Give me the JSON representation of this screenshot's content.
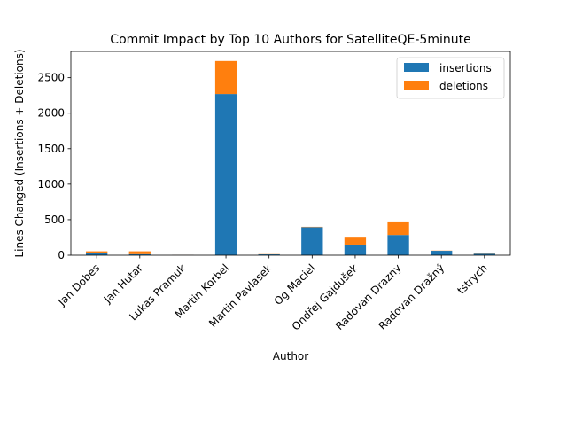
{
  "chart_data": {
    "type": "bar",
    "stacked": true,
    "title": "Commit Impact by Top 10 Authors for SatelliteQE-5minute",
    "xlabel": "Author",
    "ylabel": "Lines Changed (Insertions + Deletions)",
    "categories": [
      "Jan Dobes",
      "Jan Hutar",
      "Lukas Pramuk",
      "Martin Korbel",
      "Martin Pavlasek",
      "Og Maciel",
      "Ondřej Gajdušek",
      "Radovan Drazny",
      "Radovan Dražný",
      "tstrych"
    ],
    "series": [
      {
        "name": "insertions",
        "color": "#1f77b4",
        "values": [
          25,
          15,
          3,
          2270,
          12,
          395,
          150,
          285,
          62,
          22
        ]
      },
      {
        "name": "deletions",
        "color": "#ff7f0e",
        "values": [
          30,
          40,
          2,
          465,
          3,
          5,
          110,
          190,
          3,
          3
        ]
      }
    ],
    "ylim": [
      0,
      2870
    ],
    "yticks": [
      0,
      500,
      1000,
      1500,
      2000,
      2500
    ],
    "grid": false,
    "legend_position": "top-right"
  }
}
